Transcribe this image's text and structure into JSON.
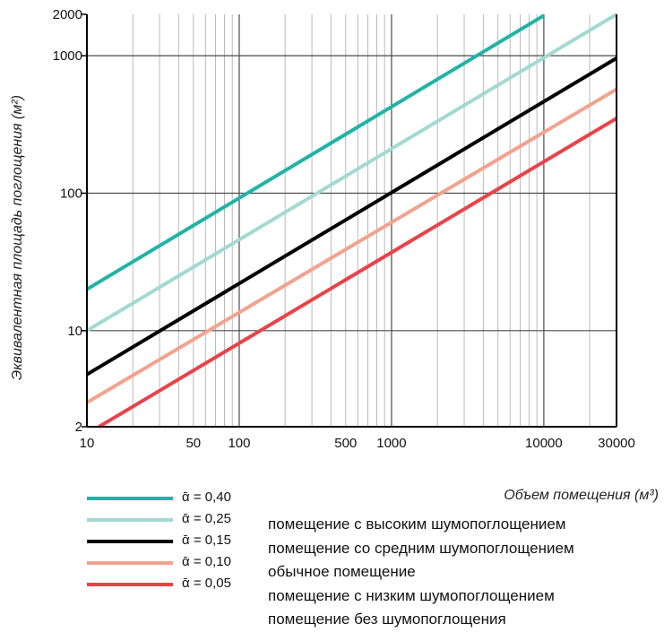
{
  "chart_data": {
    "type": "line",
    "x_scale": "log",
    "y_scale": "log",
    "xlim": [
      10,
      30000
    ],
    "ylim": [
      2,
      2000
    ],
    "xlabel": "Объем помещения (м³)",
    "ylabel": "Эквивалентная площадь поглощения (м²)",
    "x_ticks": [
      10,
      50,
      100,
      500,
      1000,
      10000,
      30000
    ],
    "x_tick_labels": [
      "10",
      "50",
      "100",
      "500",
      "1000",
      "10000",
      "30000"
    ],
    "y_ticks": [
      2,
      10,
      100,
      1000,
      2000
    ],
    "y_tick_labels": [
      "2",
      "10",
      "100",
      "1000",
      "2000"
    ],
    "grid": true,
    "series": [
      {
        "name": "ᾱ = 0,40",
        "color": "#21b3a6",
        "x": [
          10,
          10000
        ],
        "y": [
          20,
          1960
        ]
      },
      {
        "name": "ᾱ = 0,25",
        "color": "#a3d9d2",
        "x": [
          10,
          30000
        ],
        "y": [
          10,
          2000
        ]
      },
      {
        "name": "ᾱ = 0,15",
        "color": "#000000",
        "x": [
          10,
          30000
        ],
        "y": [
          4.8,
          960
        ]
      },
      {
        "name": "ᾱ = 0,10",
        "color": "#f2a38f",
        "x": [
          10,
          30000
        ],
        "y": [
          3.0,
          570
        ]
      },
      {
        "name": "ᾱ = 0,05",
        "color": "#e8434a",
        "x": [
          12,
          30000
        ],
        "y": [
          2.0,
          350
        ]
      }
    ]
  },
  "legend": [
    {
      "label": "ᾱ = 0,40",
      "color": "#21b3a6"
    },
    {
      "label": "ᾱ = 0,25",
      "color": "#a3d9d2"
    },
    {
      "label": "ᾱ = 0,15",
      "color": "#000000"
    },
    {
      "label": "ᾱ = 0,10",
      "color": "#f2a38f"
    },
    {
      "label": "ᾱ = 0,05",
      "color": "#e8434a"
    }
  ],
  "descriptions": [
    "помещение с высоким шумопоглощением",
    "помещение со средним шумопоглощением",
    "обычное помещение",
    "помещение с низким шумопоглощением",
    "помещение без шумопоглощения"
  ]
}
